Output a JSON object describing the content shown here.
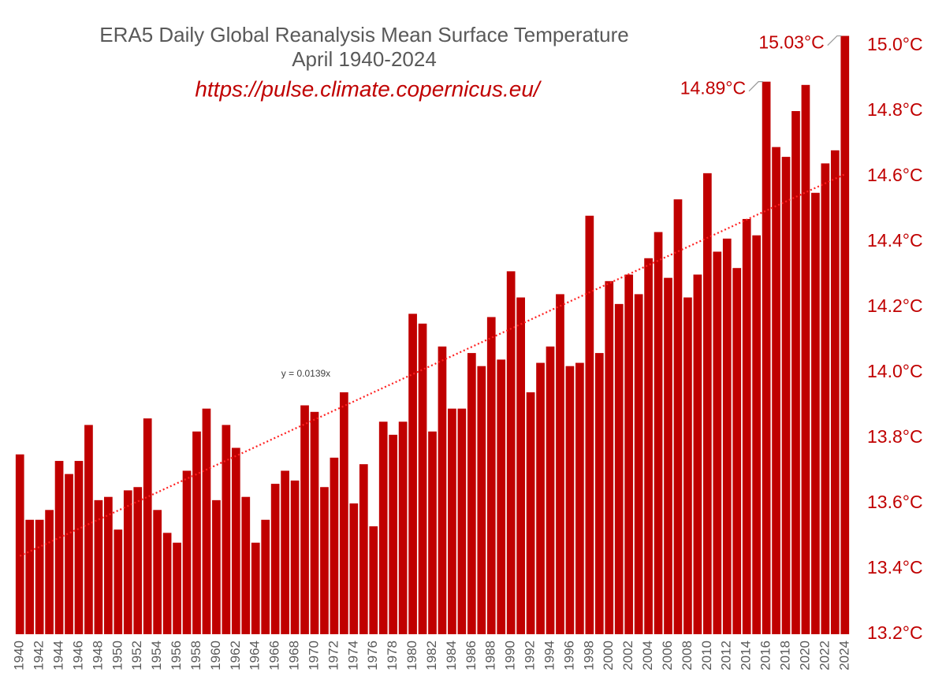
{
  "chart_data": {
    "type": "bar",
    "title": "ERA5 Daily Global Reanalysis Mean Surface Temperature",
    "subtitle": "April 1940-2024",
    "source": "https://pulse.climate.copernicus.eu/",
    "color": "#c00000",
    "categories": [
      "1940",
      null,
      "1942",
      null,
      "1944",
      null,
      "1946",
      null,
      "1948",
      null,
      "1950",
      null,
      "1952",
      null,
      "1954",
      null,
      "1956",
      null,
      "1958",
      null,
      "1960",
      null,
      "1962",
      null,
      "1964",
      null,
      "1966",
      null,
      "1968",
      null,
      "1970",
      null,
      "1972",
      null,
      "1974",
      null,
      "1976",
      null,
      "1978",
      null,
      "1980",
      null,
      "1982",
      null,
      "1984",
      null,
      "1986",
      null,
      "1988",
      null,
      "1990",
      null,
      "1992",
      null,
      "1994",
      null,
      "1996",
      null,
      "1998",
      null,
      "2000",
      null,
      "2002",
      null,
      "2004",
      null,
      "2006",
      null,
      "2008",
      null,
      "2010",
      null,
      "2012",
      null,
      "2014",
      null,
      "2016",
      null,
      "2018",
      null,
      "2020",
      null,
      "2022",
      null,
      "2024"
    ],
    "values": [
      13.75,
      13.55,
      13.55,
      13.58,
      13.73,
      13.69,
      13.73,
      13.84,
      13.61,
      13.62,
      13.52,
      13.64,
      13.65,
      13.86,
      13.58,
      13.51,
      13.48,
      13.7,
      13.82,
      13.89,
      13.61,
      13.84,
      13.77,
      13.62,
      13.48,
      13.55,
      13.66,
      13.7,
      13.67,
      13.9,
      13.88,
      13.65,
      13.74,
      13.94,
      13.6,
      13.72,
      13.53,
      13.85,
      13.81,
      13.85,
      14.18,
      14.15,
      13.82,
      14.08,
      13.89,
      13.89,
      14.06,
      14.02,
      14.17,
      14.04,
      14.31,
      14.23,
      13.94,
      14.03,
      14.08,
      14.24,
      14.02,
      14.03,
      14.48,
      14.06,
      14.28,
      14.21,
      14.3,
      14.24,
      14.35,
      14.43,
      14.29,
      14.53,
      14.23,
      14.3,
      14.61,
      14.37,
      14.41,
      14.32,
      14.47,
      14.42,
      14.89,
      14.69,
      14.66,
      14.8,
      14.88,
      14.55,
      14.64,
      14.68,
      15.03
    ],
    "value_labels": [
      null,
      null,
      null,
      null,
      null,
      null,
      null,
      null,
      null,
      null,
      null,
      null,
      null,
      null,
      null,
      null,
      null,
      null,
      null,
      null,
      null,
      null,
      null,
      null,
      null,
      null,
      null,
      null,
      null,
      null,
      null,
      null,
      null,
      null,
      null,
      null,
      null,
      null,
      null,
      null,
      null,
      null,
      null,
      null,
      null,
      null,
      null,
      null,
      null,
      null,
      null,
      null,
      null,
      null,
      null,
      null,
      null,
      null,
      null,
      null,
      null,
      null,
      null,
      null,
      null,
      null,
      null,
      null,
      null,
      null,
      null,
      null,
      null,
      null,
      null,
      null,
      "14.89°C",
      null,
      null,
      null,
      null,
      null,
      null,
      null,
      "15.03°C"
    ],
    "trendline": {
      "label": "y = 0.0139x",
      "slope": 0.0139
    },
    "ylim": [
      13.2,
      15.05
    ],
    "yticks": [
      {
        "value": 13.2,
        "label": "13.2°C"
      },
      {
        "value": 13.4,
        "label": "13.4°C"
      },
      {
        "value": 13.6,
        "label": "13.6°C"
      },
      {
        "value": 13.8,
        "label": "13.8°C"
      },
      {
        "value": 14.0,
        "label": "14.0°C"
      },
      {
        "value": 14.2,
        "label": "14.2°C"
      },
      {
        "value": 14.4,
        "label": "14.4°C"
      },
      {
        "value": 14.6,
        "label": "14.6°C"
      },
      {
        "value": 14.8,
        "label": "14.8°C"
      },
      {
        "value": 15.0,
        "label": "15.0°C"
      }
    ],
    "y_axis_side": "right",
    "grid": false
  }
}
